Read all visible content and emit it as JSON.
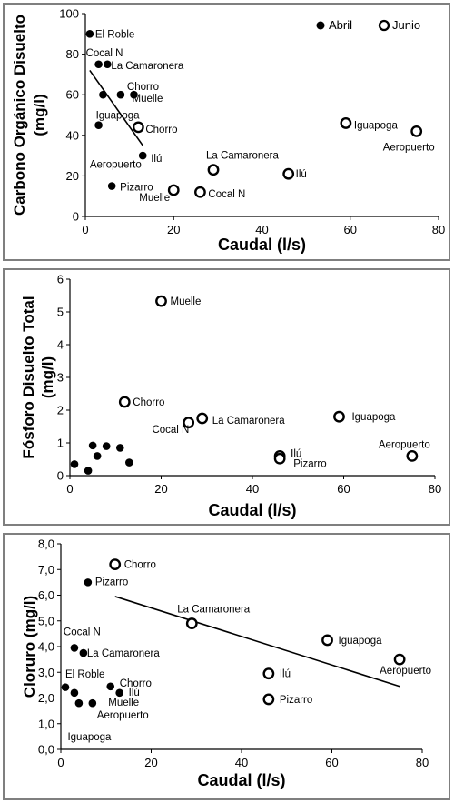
{
  "chart_data": [
    {
      "type": "scatter",
      "title": "",
      "ylabel_lines": [
        "Carbono Orgánico Disuelto",
        "(mg/l)"
      ],
      "xlabel": "Caudal (l/s)",
      "xlim": [
        0,
        80
      ],
      "ylim": [
        0,
        100
      ],
      "xticks": [
        0,
        20,
        40,
        60,
        80
      ],
      "yticks": [
        0,
        20,
        40,
        60,
        80,
        100
      ],
      "ytick_labels": [
        "0",
        "20",
        "40",
        "60",
        "80",
        "100"
      ],
      "legend": {
        "placement": "top-right",
        "entries": [
          "Abril",
          "Junio"
        ]
      },
      "series": [
        {
          "name": "Abril",
          "marker": "filled",
          "points": [
            {
              "x": 1,
              "y": 90,
              "label": "El Roble"
            },
            {
              "x": 3,
              "y": 75,
              "label": "Cocal N"
            },
            {
              "x": 5,
              "y": 75,
              "label": "La Camaronera"
            },
            {
              "x": 4,
              "y": 60
            },
            {
              "x": 8,
              "y": 60,
              "label": "Chorro"
            },
            {
              "x": 11,
              "y": 60,
              "label": "Muelle"
            },
            {
              "x": 3,
              "y": 45,
              "label": "Iguapoga"
            },
            {
              "x": 13,
              "y": 30,
              "label": "Ilú"
            },
            {
              "x": 6,
              "y": 15,
              "label": "Pizarro"
            }
          ],
          "label_items": [
            {
              "text": "Aeropuerto",
              "x": 1,
              "y": 24
            }
          ],
          "trendline": [
            [
              1,
              72
            ],
            [
              13,
              35
            ]
          ]
        },
        {
          "name": "Junio",
          "marker": "open",
          "points": [
            {
              "x": 12,
              "y": 44,
              "label": "Chorro"
            },
            {
              "x": 20,
              "y": 13,
              "label": "Muelle"
            },
            {
              "x": 26,
              "y": 12,
              "label": "Cocal N"
            },
            {
              "x": 29,
              "y": 23,
              "label": "La Camaronera"
            },
            {
              "x": 46,
              "y": 21,
              "label": "Ilú"
            },
            {
              "x": 59,
              "y": 46,
              "label": "Iguapoga"
            },
            {
              "x": 75,
              "y": 42,
              "label": "Aeropuerto"
            }
          ]
        }
      ]
    },
    {
      "type": "scatter",
      "title": "",
      "ylabel_lines": [
        "Fósforo Disuelto Total",
        "(mg/l)"
      ],
      "xlabel": "Caudal (l/s)",
      "xlim": [
        0,
        80
      ],
      "ylim": [
        0,
        6
      ],
      "xticks": [
        0,
        20,
        40,
        60,
        80
      ],
      "yticks": [
        0,
        1,
        2,
        3,
        4,
        5,
        6
      ],
      "ytick_labels": [
        "0",
        "1",
        "2",
        "3",
        "4",
        "5",
        "6"
      ],
      "series": [
        {
          "name": "",
          "marker": "filled",
          "points": [
            {
              "x": 1,
              "y": 0.35
            },
            {
              "x": 4,
              "y": 0.15
            },
            {
              "x": 5,
              "y": 0.92
            },
            {
              "x": 6,
              "y": 0.6
            },
            {
              "x": 8,
              "y": 0.9
            },
            {
              "x": 11,
              "y": 0.85
            },
            {
              "x": 13,
              "y": 0.4
            }
          ]
        },
        {
          "name": "",
          "marker": "open",
          "points": [
            {
              "x": 20,
              "y": 5.33,
              "label": "Muelle"
            },
            {
              "x": 12,
              "y": 2.25,
              "label": "Chorro"
            },
            {
              "x": 26,
              "y": 1.62
            },
            {
              "x": 29,
              "y": 1.75,
              "label": "La Camaronera"
            },
            {
              "x": 59,
              "y": 1.8,
              "label": "Iguapoga"
            },
            {
              "x": 46,
              "y": 0.6,
              "label": "Ilú"
            },
            {
              "x": 46,
              "y": 0.52
            },
            {
              "x": 75,
              "y": 0.6,
              "label": "Aeropuerto"
            }
          ],
          "label_items": [
            {
              "text": "Cocal N",
              "x": 18,
              "y": 1.3
            },
            {
              "text": "Pizarro",
              "x": 49,
              "y": 0.27
            }
          ]
        }
      ]
    },
    {
      "type": "scatter",
      "title": "",
      "ylabel_lines": [
        "Cloruro (mg/l)"
      ],
      "xlabel": "Caudal (l/s)",
      "xlim": [
        0,
        80
      ],
      "ylim": [
        0,
        8
      ],
      "xticks": [
        0,
        20,
        40,
        60,
        80
      ],
      "yticks": [
        0,
        1,
        2,
        3,
        4,
        5,
        6,
        7,
        8
      ],
      "ytick_labels": [
        "0,0",
        "1,0",
        "2,0",
        "3,0",
        "4,0",
        "5,0",
        "6,0",
        "7,0",
        "8,0"
      ],
      "series": [
        {
          "name": "",
          "marker": "filled",
          "points": [
            {
              "x": 6,
              "y": 6.5,
              "label": "Pizarro"
            },
            {
              "x": 3,
              "y": 3.95,
              "label": "Cocal N"
            },
            {
              "x": 5,
              "y": 3.75,
              "label": "La Camaronera"
            },
            {
              "x": 1,
              "y": 2.42
            },
            {
              "x": 3,
              "y": 2.2
            },
            {
              "x": 11,
              "y": 2.45,
              "label": "Chorro"
            },
            {
              "x": 13,
              "y": 2.2,
              "label": "Ilú"
            },
            {
              "x": 4,
              "y": 1.8
            },
            {
              "x": 7,
              "y": 1.8
            }
          ],
          "label_items": [
            {
              "text": "El Roble",
              "x": 1,
              "y": 2.8
            },
            {
              "text": "Muelle",
              "x": 10.5,
              "y": 1.7
            },
            {
              "text": "Aeropuerto",
              "x": 8,
              "y": 1.2
            },
            {
              "text": "Iguapoga",
              "x": 1.5,
              "y": 0.35
            }
          ]
        },
        {
          "name": "",
          "marker": "open",
          "points": [
            {
              "x": 12,
              "y": 7.2,
              "label": "Chorro"
            },
            {
              "x": 29,
              "y": 4.9,
              "label": "La Camaronera"
            },
            {
              "x": 59,
              "y": 4.25,
              "label": "Iguapoga"
            },
            {
              "x": 75,
              "y": 3.5,
              "label": "Aeropuerto"
            },
            {
              "x": 46,
              "y": 2.95,
              "label": "Ilú"
            },
            {
              "x": 46,
              "y": 1.95,
              "label": "Pizarro"
            }
          ],
          "trendline": [
            [
              12,
              5.95
            ],
            [
              75,
              2.45
            ]
          ]
        }
      ]
    }
  ]
}
